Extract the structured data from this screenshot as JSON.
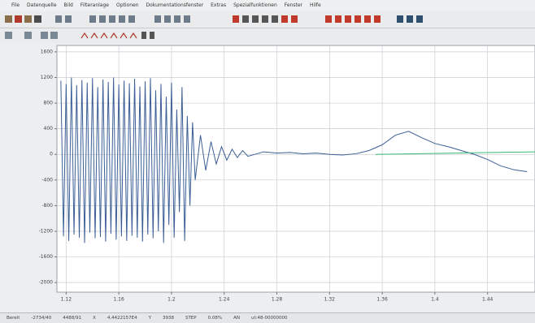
{
  "menu": [
    "File",
    "Datenquelle",
    "Bild",
    "Filteranlage",
    "Optionen",
    "Dokumentationsfenster",
    "Extras",
    "Spezialfunktionen",
    "Fenster",
    "Hilfe"
  ],
  "chart_data": {
    "type": "line",
    "xlim": [
      1.113,
      1.476
    ],
    "ylim": [
      -2150,
      1700
    ],
    "xticks": [
      1.12,
      1.16,
      1.2,
      1.24,
      1.28,
      1.32,
      1.36,
      1.4,
      1.44
    ],
    "yticks": [
      1600,
      1200,
      800,
      400,
      0,
      -400,
      -800,
      -1200,
      -1600,
      -2000
    ],
    "grid": true,
    "series": [
      {
        "color": "#3b5e95",
        "x": [
          1.116,
          1.118,
          1.12,
          1.122,
          1.124,
          1.126,
          1.128,
          1.13,
          1.132,
          1.134,
          1.136,
          1.138,
          1.14,
          1.142,
          1.144,
          1.146,
          1.148,
          1.15,
          1.152,
          1.154,
          1.156,
          1.158,
          1.16,
          1.162,
          1.164,
          1.166,
          1.168,
          1.17,
          1.172,
          1.174,
          1.176,
          1.178,
          1.18,
          1.182,
          1.184,
          1.186,
          1.188,
          1.19,
          1.192,
          1.194,
          1.196,
          1.198,
          1.2,
          1.202,
          1.204,
          1.206,
          1.208,
          1.21,
          1.212,
          1.214,
          1.216,
          1.218,
          1.222,
          1.226,
          1.23,
          1.234,
          1.238,
          1.242,
          1.246,
          1.25,
          1.254,
          1.258,
          1.27,
          1.28,
          1.29,
          1.3,
          1.31,
          1.32,
          1.33,
          1.34,
          1.35,
          1.36,
          1.37,
          1.38,
          1.39,
          1.4,
          1.41,
          1.42,
          1.43,
          1.44,
          1.45,
          1.46,
          1.47
        ],
        "values": [
          1150,
          -1280,
          1100,
          -1350,
          1200,
          -1250,
          1080,
          -1300,
          1160,
          -1380,
          1120,
          -1220,
          1190,
          -1310,
          1050,
          -1290,
          1170,
          -1360,
          1130,
          -1240,
          1200,
          -1330,
          1090,
          -1280,
          1150,
          -1350,
          1110,
          -1270,
          1180,
          -1300,
          1060,
          -1360,
          1140,
          -1250,
          1190,
          -1310,
          1000,
          -1200,
          1100,
          -1380,
          900,
          -1100,
          1120,
          -1300,
          700,
          -900,
          1050,
          -1350,
          600,
          -800,
          500,
          -400,
          300,
          -250,
          200,
          -150,
          120,
          -90,
          80,
          -50,
          60,
          -30,
          40,
          20,
          30,
          10,
          20,
          0,
          -10,
          10,
          60,
          150,
          300,
          360,
          260,
          170,
          120,
          60,
          0,
          -80,
          -180,
          -240,
          -270
        ]
      },
      {
        "color": "#3cb878",
        "x": [
          1.355,
          1.476
        ],
        "values": [
          0,
          40
        ]
      }
    ]
  },
  "status_bar": [
    "Bereit",
    "-2734/40",
    "4488/91",
    "X",
    "4.4422157E4",
    "Y",
    "3938",
    "STEP",
    "0.08%",
    "AN",
    "ut:48-00000000"
  ]
}
